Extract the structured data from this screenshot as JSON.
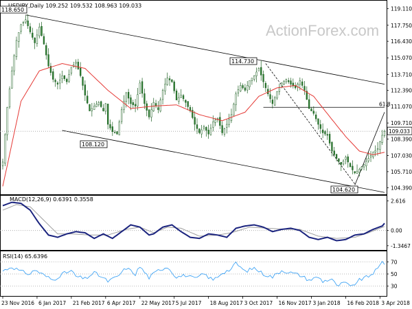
{
  "watermark": "ActionForex.com",
  "colors": {
    "candle_up": "#ffffff",
    "candle_down": "#2e7d32",
    "candle_wick": "#1b5e20",
    "ma_line": "#e53935",
    "channel": "#000000",
    "macd_line": "#1a237e",
    "macd_signal": "#9e9e9e",
    "rsi_line": "#42a5f5",
    "frame": "#000000",
    "dotted": "#9e9e9e"
  },
  "chart_data": [
    {
      "type": "candlestick",
      "title": "USDJPY,Daily  109.252 109.532 108.963 109.033",
      "x_tick_labels": [
        "23 Nov 2016",
        "6 Jan 2017",
        "21 Feb 2017",
        "6 Apr 2017",
        "22 May 2017",
        "5 Jul 2017",
        "18 Aug 2017",
        "3 Oct 2017",
        "16 Nov 2017",
        "3 Jan 2018",
        "16 Feb 2018",
        "3 Apr 2018"
      ],
      "y_tick_labels": [
        "119.110",
        "117.750",
        "116.430",
        "115.070",
        "113.710",
        "112.390",
        "111.070",
        "109.710",
        "108.390",
        "107.030",
        "105.710",
        "104.390"
      ],
      "ylim": [
        103.9,
        119.6
      ],
      "current_price_label": "109.033",
      "annotations": {
        "high_left": "118.650",
        "low_mid": "108.120",
        "high_oct": "114.730",
        "low_right": "104.620",
        "fib_label": "61.8"
      },
      "fib_level": 111.0,
      "ma_label": "",
      "price_anchors": [
        [
          0,
          106.5
        ],
        [
          2,
          111.0
        ],
        [
          4,
          114.0
        ],
        [
          6,
          116.5
        ],
        [
          8,
          117.8
        ],
        [
          10,
          118.2
        ],
        [
          12,
          117.2
        ],
        [
          14,
          116.3
        ],
        [
          16,
          117.6
        ],
        [
          18,
          116.2
        ],
        [
          20,
          114.4
        ],
        [
          22,
          113.3
        ],
        [
          24,
          112.9
        ],
        [
          26,
          113.6
        ],
        [
          28,
          113.1
        ],
        [
          30,
          114.3
        ],
        [
          32,
          114.7
        ],
        [
          34,
          113.6
        ],
        [
          36,
          112.0
        ],
        [
          38,
          110.7
        ],
        [
          40,
          111.1
        ],
        [
          42,
          111.4
        ],
        [
          44,
          110.7
        ],
        [
          45,
          111.3
        ],
        [
          46,
          109.6
        ],
        [
          48,
          109.0
        ],
        [
          50,
          108.8
        ],
        [
          52,
          110.8
        ],
        [
          54,
          112.2
        ],
        [
          56,
          111.3
        ],
        [
          58,
          111.1
        ],
        [
          60,
          113.0
        ],
        [
          62,
          111.3
        ],
        [
          64,
          110.2
        ],
        [
          66,
          111.4
        ],
        [
          68,
          110.8
        ],
        [
          70,
          112.4
        ],
        [
          72,
          113.4
        ],
        [
          74,
          113.1
        ],
        [
          76,
          111.6
        ],
        [
          78,
          112.0
        ],
        [
          80,
          111.4
        ],
        [
          82,
          110.7
        ],
        [
          84,
          109.6
        ],
        [
          86,
          108.9
        ],
        [
          88,
          109.4
        ],
        [
          90,
          108.8
        ],
        [
          92,
          109.8
        ],
        [
          94,
          110.1
        ],
        [
          96,
          108.9
        ],
        [
          98,
          109.6
        ],
        [
          100,
          110.4
        ],
        [
          102,
          112.1
        ],
        [
          104,
          112.8
        ],
        [
          106,
          112.4
        ],
        [
          108,
          113.2
        ],
        [
          110,
          113.6
        ],
        [
          112,
          114.2
        ],
        [
          114,
          113.1
        ],
        [
          116,
          112.1
        ],
        [
          118,
          111.3
        ],
        [
          120,
          112.3
        ],
        [
          122,
          113.0
        ],
        [
          124,
          113.3
        ],
        [
          126,
          112.9
        ],
        [
          128,
          112.6
        ],
        [
          130,
          113.2
        ],
        [
          132,
          112.4
        ],
        [
          134,
          110.9
        ],
        [
          136,
          110.5
        ],
        [
          138,
          109.6
        ],
        [
          140,
          108.9
        ],
        [
          142,
          108.7
        ],
        [
          144,
          107.4
        ],
        [
          146,
          106.8
        ],
        [
          148,
          106.3
        ],
        [
          150,
          106.9
        ],
        [
          152,
          106.1
        ],
        [
          154,
          105.6
        ],
        [
          156,
          105.9
        ],
        [
          158,
          106.3
        ],
        [
          160,
          106.8
        ],
        [
          162,
          107.3
        ],
        [
          164,
          107.6
        ],
        [
          166,
          108.7
        ],
        [
          167,
          109.03
        ]
      ],
      "ma_anchors": [
        [
          0,
          104.5
        ],
        [
          8,
          111.5
        ],
        [
          16,
          114.0
        ],
        [
          26,
          114.6
        ],
        [
          36,
          114.2
        ],
        [
          46,
          112.4
        ],
        [
          56,
          110.9
        ],
        [
          66,
          111.1
        ],
        [
          76,
          111.2
        ],
        [
          86,
          110.4
        ],
        [
          96,
          109.9
        ],
        [
          106,
          110.6
        ],
        [
          112,
          111.9
        ],
        [
          120,
          112.6
        ],
        [
          128,
          112.8
        ],
        [
          136,
          111.9
        ],
        [
          144,
          110.0
        ],
        [
          150,
          108.6
        ],
        [
          156,
          107.4
        ],
        [
          162,
          107.1
        ],
        [
          167,
          107.3
        ]
      ]
    },
    {
      "type": "line",
      "title": "MACD(12,26,9) 0.6391 0.3558",
      "y_tick_labels": [
        "2.616",
        "0.00",
        "-1.3467"
      ],
      "ylim": [
        -1.6,
        2.9
      ],
      "series": [
        {
          "values_anchors": [
            [
              0,
              2.2
            ],
            [
              4,
              2.5
            ],
            [
              8,
              2.4
            ],
            [
              12,
              1.8
            ],
            [
              16,
              0.6
            ],
            [
              20,
              -0.4
            ],
            [
              24,
              -0.6
            ],
            [
              28,
              -0.3
            ],
            [
              32,
              -0.1
            ],
            [
              36,
              -0.2
            ],
            [
              40,
              -0.7
            ],
            [
              44,
              -0.3
            ],
            [
              48,
              -0.7
            ],
            [
              52,
              -0.1
            ],
            [
              56,
              0.5
            ],
            [
              60,
              0.3
            ],
            [
              64,
              -0.4
            ],
            [
              66,
              -0.3
            ],
            [
              70,
              0.3
            ],
            [
              74,
              0.5
            ],
            [
              78,
              -0.1
            ],
            [
              82,
              -0.6
            ],
            [
              86,
              -0.7
            ],
            [
              90,
              -0.3
            ],
            [
              94,
              -0.4
            ],
            [
              98,
              -0.6
            ],
            [
              102,
              0.2
            ],
            [
              106,
              0.4
            ],
            [
              110,
              0.5
            ],
            [
              114,
              0.3
            ],
            [
              118,
              -0.1
            ],
            [
              122,
              0.1
            ],
            [
              126,
              0.2
            ],
            [
              130,
              0.0
            ],
            [
              134,
              -0.6
            ],
            [
              138,
              -0.8
            ],
            [
              142,
              -0.6
            ],
            [
              146,
              -0.9
            ],
            [
              150,
              -0.8
            ],
            [
              154,
              -0.4
            ],
            [
              158,
              -0.3
            ],
            [
              162,
              0.1
            ],
            [
              166,
              0.4
            ],
            [
              167,
              0.64
            ]
          ]
        },
        {
          "values_anchors": [
            [
              0,
              1.8
            ],
            [
              6,
              2.3
            ],
            [
              12,
              2.1
            ],
            [
              18,
              0.9
            ],
            [
              24,
              -0.3
            ],
            [
              30,
              -0.3
            ],
            [
              38,
              -0.4
            ],
            [
              46,
              -0.4
            ],
            [
              54,
              0.1
            ],
            [
              60,
              0.3
            ],
            [
              66,
              -0.2
            ],
            [
              72,
              0.3
            ],
            [
              78,
              0.2
            ],
            [
              86,
              -0.5
            ],
            [
              94,
              -0.4
            ],
            [
              100,
              -0.2
            ],
            [
              108,
              0.3
            ],
            [
              116,
              0.2
            ],
            [
              124,
              0.1
            ],
            [
              130,
              0.1
            ],
            [
              138,
              -0.5
            ],
            [
              146,
              -0.7
            ],
            [
              154,
              -0.6
            ],
            [
              160,
              -0.2
            ],
            [
              167,
              0.36
            ]
          ]
        }
      ]
    },
    {
      "type": "line",
      "title": "RSI(14) 65.6396",
      "y_tick_labels": [
        "70",
        "50",
        "30"
      ],
      "ylim": [
        15,
        85
      ],
      "levels": [
        70,
        50,
        30
      ],
      "series": [
        {
          "values_anchors": [
            [
              0,
              55
            ],
            [
              4,
              62
            ],
            [
              8,
              54
            ],
            [
              12,
              50
            ],
            [
              14,
              57
            ],
            [
              18,
              48
            ],
            [
              22,
              40
            ],
            [
              26,
              50
            ],
            [
              30,
              55
            ],
            [
              32,
              46
            ],
            [
              36,
              42
            ],
            [
              40,
              52
            ],
            [
              42,
              48
            ],
            [
              46,
              38
            ],
            [
              50,
              45
            ],
            [
              54,
              60
            ],
            [
              58,
              50
            ],
            [
              60,
              62
            ],
            [
              64,
              44
            ],
            [
              68,
              56
            ],
            [
              72,
              62
            ],
            [
              76,
              45
            ],
            [
              80,
              48
            ],
            [
              84,
              42
            ],
            [
              88,
              50
            ],
            [
              92,
              40
            ],
            [
              96,
              52
            ],
            [
              100,
              58
            ],
            [
              102,
              68
            ],
            [
              106,
              54
            ],
            [
              110,
              60
            ],
            [
              114,
              50
            ],
            [
              118,
              45
            ],
            [
              122,
              56
            ],
            [
              126,
              52
            ],
            [
              130,
              48
            ],
            [
              134,
              40
            ],
            [
              138,
              45
            ],
            [
              140,
              38
            ],
            [
              144,
              42
            ],
            [
              146,
              30
            ],
            [
              150,
              36
            ],
            [
              152,
              28
            ],
            [
              156,
              40
            ],
            [
              160,
              46
            ],
            [
              164,
              58
            ],
            [
              166,
              70
            ],
            [
              167,
              65.6
            ]
          ]
        }
      ]
    }
  ]
}
